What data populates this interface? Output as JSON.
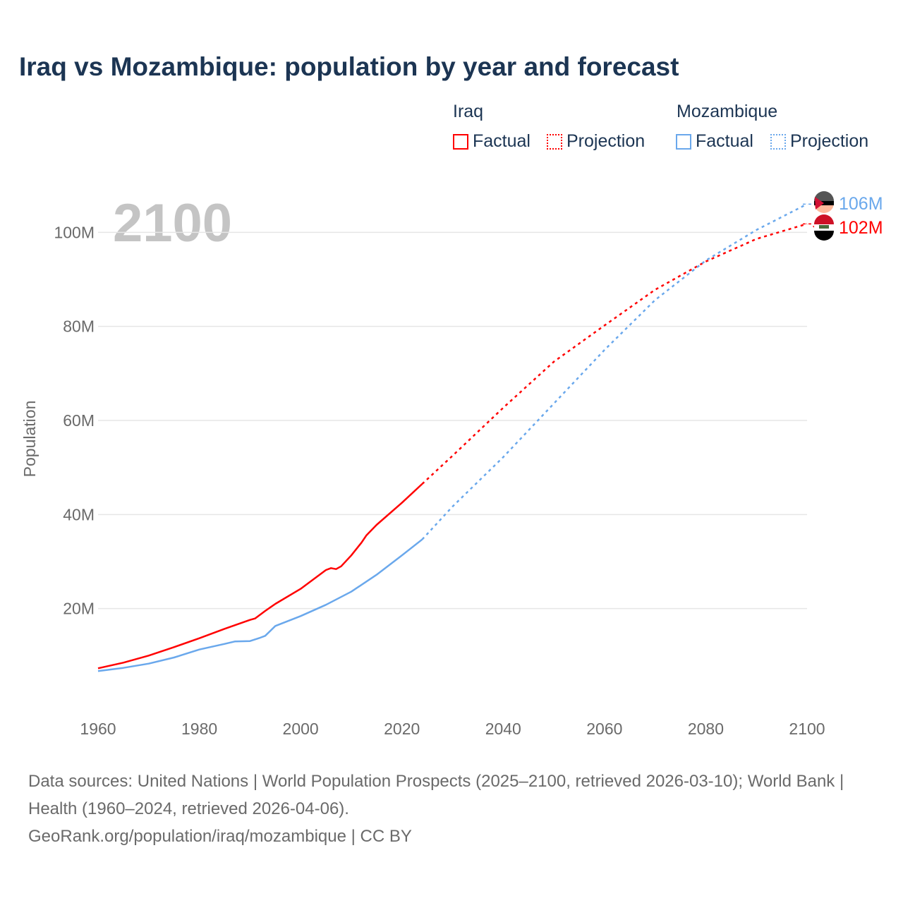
{
  "chart_data": {
    "type": "line",
    "title": "Iraq vs Mozambique: population by year and forecast",
    "ylabel": "Population",
    "xlabel": "",
    "xlim": [
      1960,
      2100
    ],
    "ylim": [
      0,
      110
    ],
    "xticks": [
      "1960",
      "1980",
      "2000",
      "2020",
      "2040",
      "2060",
      "2080",
      "2100"
    ],
    "yticks": [
      "20M",
      "40M",
      "60M",
      "80M",
      "100M"
    ],
    "year_label": "2100",
    "legend": {
      "groups": [
        {
          "name": "Iraq",
          "factual": "Factual",
          "projection": "Projection"
        },
        {
          "name": "Mozambique",
          "factual": "Factual",
          "projection": "Projection"
        }
      ],
      "placement": "top-right"
    },
    "series": [
      {
        "name": "Iraq",
        "color": "#ff0000",
        "end_label": "102M",
        "factual": {
          "x": [
            1960,
            1965,
            1970,
            1975,
            1980,
            1985,
            1990,
            1991,
            1993,
            1995,
            2000,
            2005,
            2006,
            2007,
            2008,
            2010,
            2012,
            2013,
            2015,
            2020,
            2024
          ],
          "y": [
            7.3,
            8.5,
            10,
            11.8,
            13.7,
            15.7,
            17.6,
            17.9,
            19.5,
            21,
            24.2,
            28.2,
            28.6,
            28.4,
            29,
            31.3,
            34,
            35.6,
            37.8,
            42.5,
            46.5
          ]
        },
        "projection": {
          "x": [
            2024,
            2030,
            2040,
            2050,
            2060,
            2070,
            2080,
            2090,
            2100
          ],
          "y": [
            46.5,
            52.5,
            62.7,
            72.5,
            80.2,
            87.8,
            93.8,
            98.6,
            101.8
          ]
        }
      },
      {
        "name": "Mozambique",
        "color": "#6aa8ec",
        "end_label": "106M",
        "factual": {
          "x": [
            1960,
            1965,
            1970,
            1975,
            1980,
            1985,
            1987,
            1990,
            1992,
            1993,
            1995,
            2000,
            2005,
            2010,
            2015,
            2020,
            2024
          ],
          "y": [
            6.7,
            7.4,
            8.3,
            9.6,
            11.3,
            12.5,
            13,
            13.1,
            13.8,
            14.2,
            16.3,
            18.4,
            20.8,
            23.6,
            27.2,
            31.3,
            34.7
          ]
        },
        "projection": {
          "x": [
            2024,
            2030,
            2040,
            2050,
            2060,
            2070,
            2080,
            2090,
            2100
          ],
          "y": [
            34.7,
            41.7,
            52.2,
            63.6,
            75,
            85.6,
            94,
            100.5,
            106
          ]
        }
      }
    ]
  },
  "footer": {
    "line1": "Data sources: United Nations | World Population Prospects (2025–2100, retrieved 2026-03-10); World Bank | Health (1960–2024, retrieved 2026-04-06).",
    "line2": "GeoRank.org/population/iraq/mozambique | CC BY"
  }
}
